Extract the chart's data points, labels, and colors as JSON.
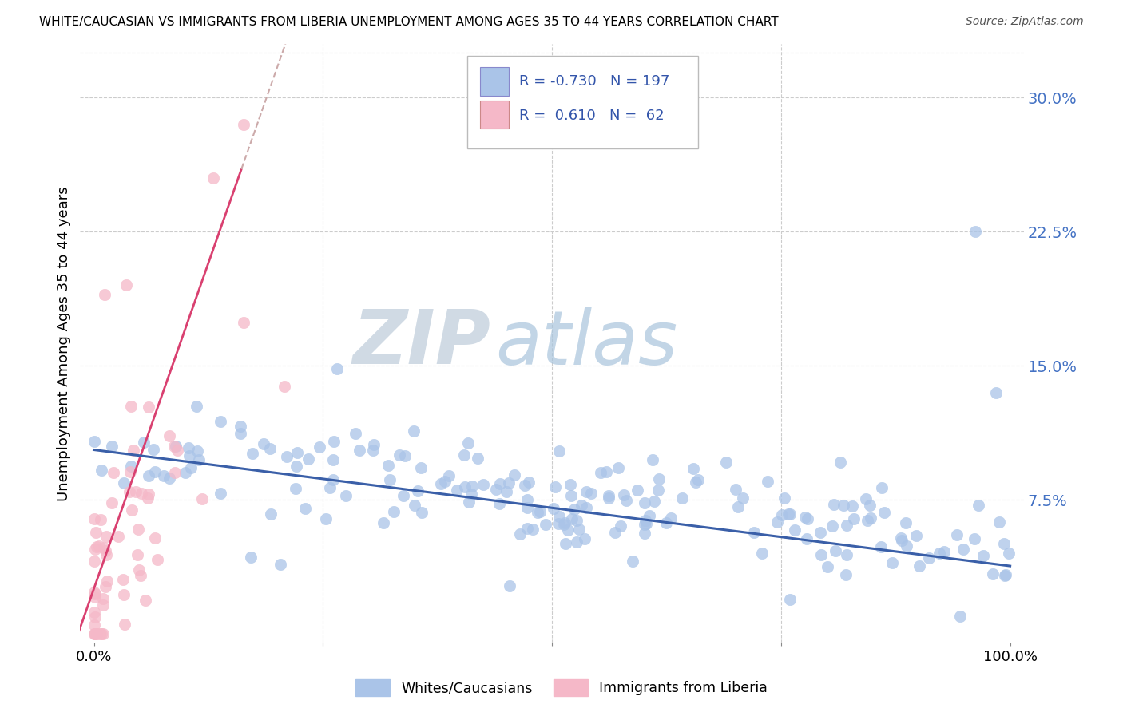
{
  "title": "WHITE/CAUCASIAN VS IMMIGRANTS FROM LIBERIA UNEMPLOYMENT AMONG AGES 35 TO 44 YEARS CORRELATION CHART",
  "source": "Source: ZipAtlas.com",
  "ylabel_label": "Unemployment Among Ages 35 to 44 years",
  "legend_labels": [
    "Whites/Caucasians",
    "Immigrants from Liberia"
  ],
  "blue_R": "-0.730",
  "blue_N": "197",
  "pink_R": "0.610",
  "pink_N": "62",
  "blue_color": "#aac4e8",
  "pink_color": "#f5b8c8",
  "blue_line_color": "#3a5fa8",
  "pink_line_color": "#d94070",
  "pink_dash_color": "#ccaaaa",
  "watermark_zip": "ZIP",
  "watermark_atlas": "atlas",
  "xlim": [
    0.0,
    1.0
  ],
  "ylim_min": -0.005,
  "ylim_max": 0.33,
  "ytick_vals": [
    0.075,
    0.15,
    0.225,
    0.3
  ],
  "ytick_labels": [
    "7.5%",
    "15.0%",
    "22.5%",
    "30.0%"
  ],
  "blue_trend_y0": 0.103,
  "blue_trend_y1": 0.038,
  "pink_trend_x0": -0.005,
  "pink_trend_y0": 0.018,
  "pink_trend_x1": 0.185,
  "pink_trend_y1": 0.295
}
